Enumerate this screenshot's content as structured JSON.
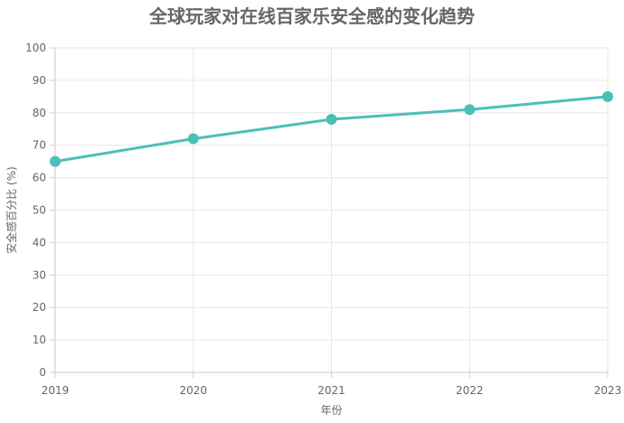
{
  "chart_data": {
    "type": "line",
    "title": "全球玩家对在线百家乐安全感的变化趋势",
    "xlabel": "年份",
    "ylabel": "安全感百分比 (%)",
    "categories": [
      "2019",
      "2020",
      "2021",
      "2022",
      "2023"
    ],
    "series": [
      {
        "values": [
          65,
          72,
          78,
          81,
          85
        ],
        "color": "#4bbfb7"
      }
    ],
    "ylim": [
      0,
      100
    ],
    "yticks": [
      0,
      10,
      20,
      30,
      40,
      50,
      60,
      70,
      80,
      90,
      100
    ],
    "grid": true,
    "legend": "none"
  }
}
